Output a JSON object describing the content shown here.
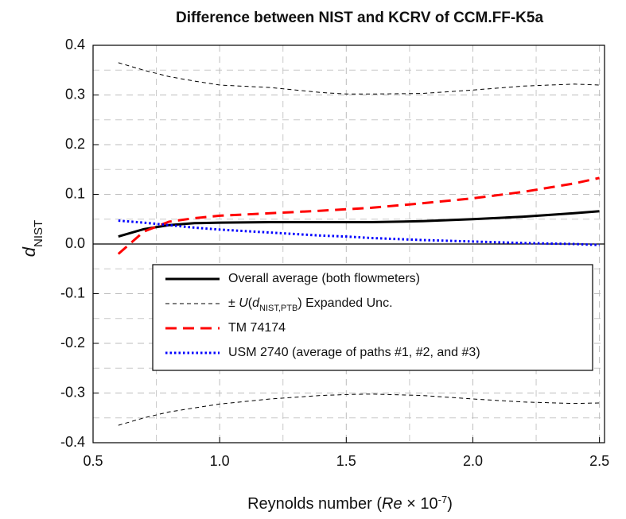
{
  "chart_data": {
    "type": "line",
    "title": "Difference between NIST and KCRV of CCM.FF-K5a",
    "xlabel": [
      "Reynolds number (",
      "Re",
      " × 10",
      "-7",
      ")"
    ],
    "ylabel": [
      "d",
      "NIST"
    ],
    "x": [
      0.6,
      0.7,
      0.8,
      0.9,
      1.0,
      1.2,
      1.4,
      1.5,
      1.6,
      1.8,
      2.0,
      2.2,
      2.4,
      2.5
    ],
    "series": [
      {
        "name": "Overall  average  (both flowmeters)",
        "color": "#000000",
        "style": "solid",
        "width": 3,
        "values": [
          0.015,
          0.03,
          0.038,
          0.042,
          0.043,
          0.044,
          0.044,
          0.044,
          0.044,
          0.046,
          0.05,
          0.055,
          0.062,
          0.066
        ]
      },
      {
        "name": [
          "± ",
          "U",
          "(",
          "d",
          "NIST,PTB",
          ") Expanded Unc."
        ],
        "color": "#000000",
        "style": "thin-dash",
        "width": 1,
        "values": [
          0.365,
          0.35,
          0.337,
          0.328,
          0.32,
          0.315,
          0.305,
          0.302,
          0.302,
          0.303,
          0.31,
          0.318,
          0.322,
          0.32
        ],
        "lower": [
          -0.365,
          -0.35,
          -0.338,
          -0.33,
          -0.322,
          -0.312,
          -0.305,
          -0.303,
          -0.302,
          -0.305,
          -0.312,
          -0.318,
          -0.321,
          -0.32
        ]
      },
      {
        "name": "TM 74174",
        "color": "#ff0000",
        "style": "dash",
        "width": 3,
        "values": [
          -0.02,
          0.025,
          0.045,
          0.052,
          0.057,
          0.062,
          0.067,
          0.07,
          0.073,
          0.082,
          0.092,
          0.105,
          0.122,
          0.133
        ]
      },
      {
        "name": "USM 2740 (average  of  paths #1, #2, and #3)",
        "color": "#0000ff",
        "style": "dot",
        "width": 3,
        "values": [
          0.047,
          0.043,
          0.038,
          0.033,
          0.029,
          0.023,
          0.017,
          0.015,
          0.012,
          0.008,
          0.005,
          0.002,
          0.0,
          -0.002
        ]
      }
    ],
    "xlim": [
      0.5,
      2.52
    ],
    "ylim": [
      -0.4,
      0.4
    ],
    "xticks": [
      0.5,
      {
        "value": 1.0,
        "label": "1.0"
      },
      1.5,
      {
        "value": 2.0,
        "label": "2.0"
      },
      2.5
    ],
    "yticks": [
      -0.4,
      -0.3,
      -0.2,
      -0.1,
      {
        "value": 0,
        "label": "0.0"
      },
      0.1,
      0.2,
      0.3,
      0.4
    ],
    "xminor": [
      0.75,
      1.25,
      1.75,
      2.25
    ],
    "yminor": [
      -0.35,
      -0.25,
      -0.15,
      -0.05,
      0.05,
      0.15,
      0.25,
      0.35
    ],
    "grid": true,
    "zero_line": true,
    "legend": "center"
  }
}
